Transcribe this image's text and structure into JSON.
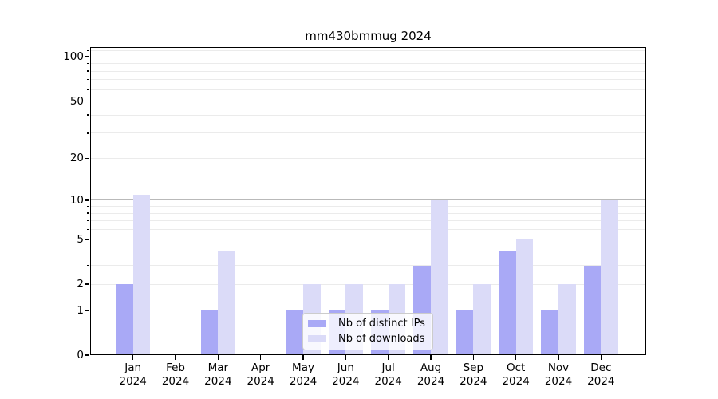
{
  "chart_data": {
    "type": "bar",
    "title": "mm430bmmug 2024",
    "year_label": "2024",
    "categories": [
      "Jan",
      "Feb",
      "Mar",
      "Apr",
      "May",
      "Jun",
      "Jul",
      "Aug",
      "Sep",
      "Oct",
      "Nov",
      "Dec"
    ],
    "series": [
      {
        "name": "Nb of distinct IPs",
        "color": "#a9a9f6",
        "values": [
          2,
          0,
          1,
          0,
          1,
          1,
          1,
          3,
          1,
          4,
          1,
          3
        ]
      },
      {
        "name": "Nb of downloads",
        "color": "#dbdbf8",
        "values": [
          11,
          0,
          4,
          0,
          2,
          2,
          2,
          10,
          2,
          5,
          2,
          10
        ]
      }
    ],
    "y_axis": {
      "scale": "log1p",
      "labeled_ticks": [
        {
          "value": 0,
          "label": "0"
        },
        {
          "value": 1,
          "label": "1"
        },
        {
          "value": 2,
          "label": "2"
        },
        {
          "value": 5,
          "label": "5"
        },
        {
          "value": 10,
          "label": "10"
        },
        {
          "value": 20,
          "label": "20"
        },
        {
          "value": 50,
          "label": "50"
        },
        {
          "value": 100,
          "label": "100"
        }
      ],
      "strong_grid_values": [
        1,
        10,
        100
      ],
      "weak_grid_values": [
        2,
        5,
        20,
        50,
        3,
        4,
        6,
        7,
        8,
        9,
        30,
        40,
        60,
        70,
        80,
        90,
        110
      ],
      "minor_tick_values": [
        3,
        4,
        6,
        7,
        8,
        9,
        30,
        40,
        60,
        70,
        80,
        90,
        110
      ],
      "ylim": [
        0,
        114
      ]
    },
    "legend": {
      "position": "lower center",
      "items": [
        "Nb of distinct IPs",
        "Nb of downloads"
      ]
    },
    "colors": {
      "grid_strong": "#b9b9b9",
      "grid_weak": "#ebebeb",
      "spine": "#000000",
      "text": "#000000",
      "legend_border": "#cccccc"
    }
  }
}
